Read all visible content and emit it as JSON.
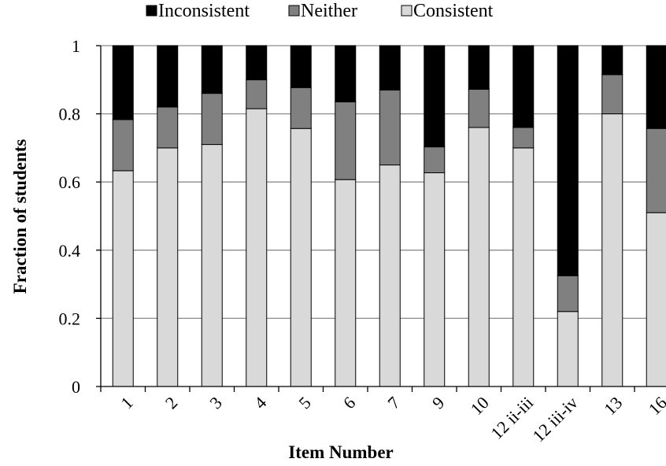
{
  "chart_data": {
    "type": "bar",
    "stacked": true,
    "categories": [
      "1",
      "2",
      "3",
      "4",
      "5",
      "6",
      "7",
      "9",
      "10",
      "12 ii-iii",
      "12 iii-iv",
      "13",
      "16"
    ],
    "series": [
      {
        "name": "Consistent",
        "color": "#d9d9d9",
        "values": [
          0.633,
          0.7,
          0.71,
          0.815,
          0.757,
          0.607,
          0.65,
          0.627,
          0.76,
          0.7,
          0.22,
          0.8,
          0.51
        ]
      },
      {
        "name": "Neither",
        "color": "#808080",
        "values": [
          0.15,
          0.12,
          0.15,
          0.085,
          0.12,
          0.228,
          0.22,
          0.076,
          0.112,
          0.06,
          0.105,
          0.115,
          0.247
        ]
      },
      {
        "name": "Inconsistent",
        "color": "#000000",
        "values": [
          0.217,
          0.18,
          0.14,
          0.1,
          0.123,
          0.165,
          0.13,
          0.297,
          0.128,
          0.24,
          0.675,
          0.085,
          0.243
        ]
      }
    ],
    "legend_order": [
      "Inconsistent",
      "Neither",
      "Consistent"
    ],
    "legend_position": "top",
    "xlabel": "Item Number",
    "ylabel": "Fraction of students",
    "ylim": [
      0,
      1
    ],
    "yticks": [
      "0",
      "0.2",
      "0.4",
      "0.6",
      "0.8",
      "1"
    ],
    "grid": true
  }
}
